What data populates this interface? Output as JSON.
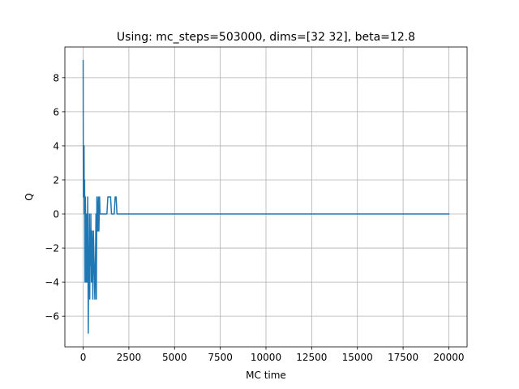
{
  "chart_data": {
    "type": "line",
    "title": "Using: mc_steps=503000, dims=[32 32], beta=12.8",
    "xlabel": "MC time",
    "ylabel": "Q",
    "xlim": [
      -1000,
      21000
    ],
    "ylim": [
      -7.8,
      9.8
    ],
    "xticks": [
      0,
      2500,
      5000,
      7500,
      10000,
      12500,
      15000,
      17500,
      20000
    ],
    "xtick_labels": [
      "0",
      "2500",
      "5000",
      "7500",
      "10000",
      "12500",
      "15000",
      "17500",
      "20000"
    ],
    "yticks": [
      -6,
      -4,
      -2,
      0,
      2,
      4,
      6,
      8
    ],
    "ytick_labels": [
      "−6",
      "−4",
      "−2",
      "0",
      "2",
      "4",
      "6",
      "8"
    ],
    "grid": true,
    "color": "#1f77b4",
    "series": [
      {
        "x": [
          0,
          10,
          20,
          40,
          50,
          60,
          80,
          100,
          120,
          140,
          160,
          180,
          200,
          220,
          250,
          280,
          300,
          320,
          340,
          360,
          380,
          400,
          420,
          450,
          480,
          500,
          530,
          560,
          600,
          640,
          680,
          700,
          720,
          750,
          780,
          800,
          830,
          860,
          880,
          900,
          920,
          950,
          980,
          1000,
          1050,
          1100,
          1200,
          1300,
          1350,
          1400,
          1500,
          1550,
          1600,
          1700,
          1750,
          1800,
          1850,
          2000,
          20000
        ],
        "y": [
          9,
          1,
          3,
          1,
          4,
          0,
          2,
          -4,
          1,
          -1,
          -4,
          0,
          -3,
          -4,
          1,
          -7,
          -2,
          -4,
          0,
          -5,
          -1,
          -3,
          0,
          -4,
          -1,
          -2,
          -5,
          -1,
          -3,
          -5,
          -2,
          0,
          -5,
          1,
          0,
          -1,
          1,
          -1,
          0,
          1,
          0,
          0,
          0,
          0,
          0,
          0,
          0,
          0,
          1,
          1,
          1,
          0,
          0,
          0,
          1,
          1,
          0,
          0,
          0
        ]
      }
    ]
  }
}
